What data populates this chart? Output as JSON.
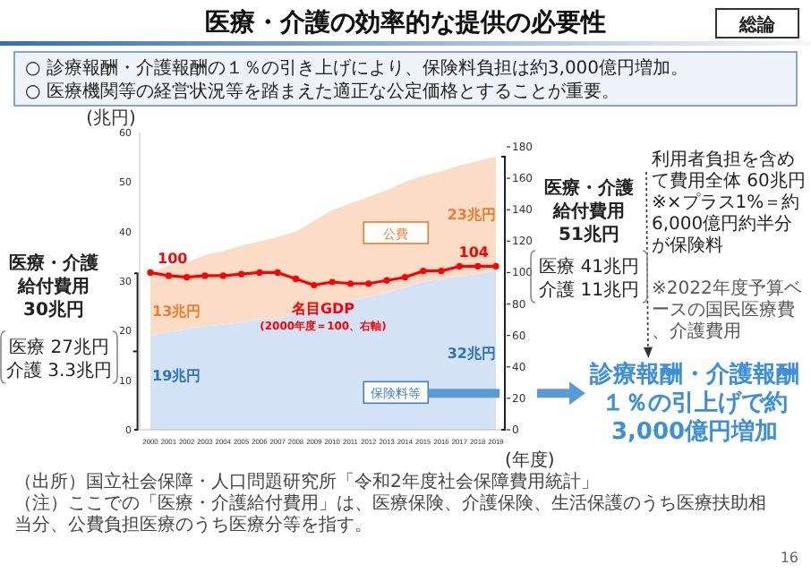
{
  "chart_data": {
    "type": "area",
    "title": "医療・介護の効率的な提供の必要性",
    "stacked": true,
    "ylabel": "(兆円)",
    "xlabel": "(年度)",
    "categories": [
      "2000",
      "2001",
      "2002",
      "2003",
      "2004",
      "2005",
      "2006",
      "2007",
      "2008",
      "2009",
      "2010",
      "2011",
      "2012",
      "2013",
      "2014",
      "2015",
      "2016",
      "2017",
      "2018",
      "2019"
    ],
    "series": [
      {
        "name": "保険料等",
        "color": "#d3e3f5",
        "values": [
          19,
          19.8,
          20.3,
          20.9,
          21.2,
          21.7,
          22.3,
          22.6,
          23.4,
          24.1,
          25.5,
          26.1,
          26.8,
          27.7,
          28.8,
          29.9,
          30.4,
          31.0,
          31.5,
          32
        ]
      },
      {
        "name": "公費",
        "color": "#fbdcc6",
        "values": [
          12.6,
          13.4,
          13.4,
          14.4,
          14.9,
          15.5,
          15.7,
          16.3,
          16.6,
          18.1,
          18.8,
          19.6,
          20.2,
          20.7,
          21.2,
          21.4,
          21.8,
          22.3,
          22.8,
          23.1
        ]
      },
      {
        "name": "名目GDP",
        "type": "line",
        "axis": "y2",
        "color": "#ff0000",
        "marker": "circle",
        "values": [
          100,
          98,
          97,
          98,
          98,
          99,
          100,
          100,
          96,
          92,
          94,
          93,
          93,
          95,
          97,
          101,
          101,
          104,
          104,
          104
        ],
        "value_labels": [
          "100",
          null,
          null,
          null,
          null,
          null,
          null,
          null,
          null,
          null,
          null,
          null,
          null,
          null,
          null,
          null,
          null,
          null,
          null,
          "104"
        ]
      }
    ],
    "ylim": [
      0,
      60
    ],
    "yticks": [
      0,
      10,
      20,
      30,
      40,
      50,
      60
    ],
    "y2lim": [
      0,
      180
    ],
    "y2ticks": [
      0,
      20,
      40,
      60,
      80,
      100,
      120,
      140,
      160,
      180
    ],
    "annotations": [
      "総論",
      "○ 診療報酬・介護報酬の１％の引き上げにより、保険料負担は約3,000億円増加。",
      "○ 医療機関等の経営状況等を踏まえた適正な公定価格とすることが重要。",
      {
        "text": "13兆円",
        "x": "2000",
        "y": 23
      },
      {
        "text": "19兆円",
        "x": "2000",
        "y": 10
      },
      {
        "text": "23兆円",
        "x": "2019",
        "y": 42.5
      },
      {
        "text": "32兆円",
        "x": "2019",
        "y": 14.5
      },
      "(2000年度＝100、右軸)",
      "医療・介護給付費用30兆円",
      "医療 27兆円介護 3.3兆円",
      "医療・介護給付費用51兆円",
      "医療 41兆円介護 11兆円",
      "利用者負担を含めて費用全体 60兆円※×プラス1%＝約6,000億円約半分が保険料",
      "※2022年度予算ベースの国民医療費、介護費用",
      "診療報酬・介護報酬１％の引上げで約3,000億円増加",
      "（出所）国立社会保障・人口問題研究所「令和2年度社会保障費用統計」",
      "（注）ここでの「医療・介護給付費用」は、医療保険、介護保険、生活保護のうち医療扶助相当分、公費負担医療のうち医療分等を指す。",
      "16"
    ]
  }
}
